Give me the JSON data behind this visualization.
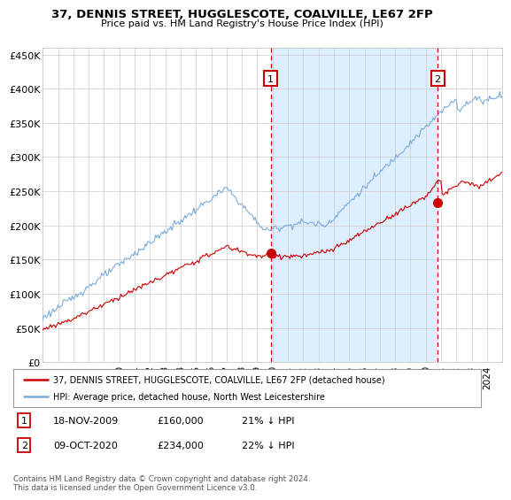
{
  "title": "37, DENNIS STREET, HUGGLESCOTE, COALVILLE, LE67 2FP",
  "subtitle": "Price paid vs. HM Land Registry's House Price Index (HPI)",
  "ylim": [
    0,
    460000
  ],
  "yticks": [
    0,
    50000,
    100000,
    150000,
    200000,
    250000,
    300000,
    350000,
    400000,
    450000
  ],
  "ytick_labels": [
    "£0",
    "£50K",
    "£100K",
    "£150K",
    "£200K",
    "£250K",
    "£300K",
    "£350K",
    "£400K",
    "£450K"
  ],
  "xlim_start": 1995.0,
  "xlim_end": 2025.0,
  "xticks": [
    1996,
    1997,
    1998,
    1999,
    2000,
    2001,
    2002,
    2003,
    2004,
    2005,
    2006,
    2007,
    2008,
    2009,
    2010,
    2011,
    2012,
    2013,
    2014,
    2015,
    2016,
    2017,
    2018,
    2019,
    2020,
    2021,
    2022,
    2023,
    2024
  ],
  "sale1_x": 2009.88,
  "sale1_y": 160000,
  "sale1_label": "1",
  "sale2_x": 2020.77,
  "sale2_y": 234000,
  "sale2_label": "2",
  "transaction1_date": "18-NOV-2009",
  "transaction1_price": "£160,000",
  "transaction1_note": "21% ↓ HPI",
  "transaction2_date": "09-OCT-2020",
  "transaction2_price": "£234,000",
  "transaction2_note": "22% ↓ HPI",
  "legend_line1": "37, DENNIS STREET, HUGGLESCOTE, COALVILLE, LE67 2FP (detached house)",
  "legend_line2": "HPI: Average price, detached house, North West Leicestershire",
  "footer": "Contains HM Land Registry data © Crown copyright and database right 2024.\nThis data is licensed under the Open Government Licence v3.0.",
  "hpi_color": "#7aabdb",
  "price_color": "#cc0000",
  "shade_color": "#ddeeff",
  "background_color": "#ffffff",
  "grid_color": "#cccccc"
}
